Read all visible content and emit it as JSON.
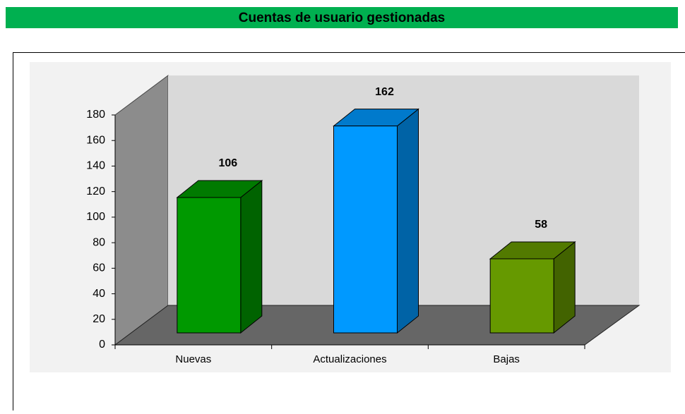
{
  "chart_data": {
    "type": "bar3d",
    "title": "Cuentas de usuario gestionadas",
    "categories": [
      "Nuevas",
      "Actualizaciones",
      "Bajas"
    ],
    "values": [
      106,
      162,
      58
    ],
    "colors": [
      "#009900",
      "#0099ff",
      "#669900"
    ],
    "ylim": [
      0,
      180
    ],
    "yticks": [
      0,
      20,
      40,
      60,
      80,
      100,
      120,
      140,
      160,
      180
    ],
    "grid": false
  }
}
